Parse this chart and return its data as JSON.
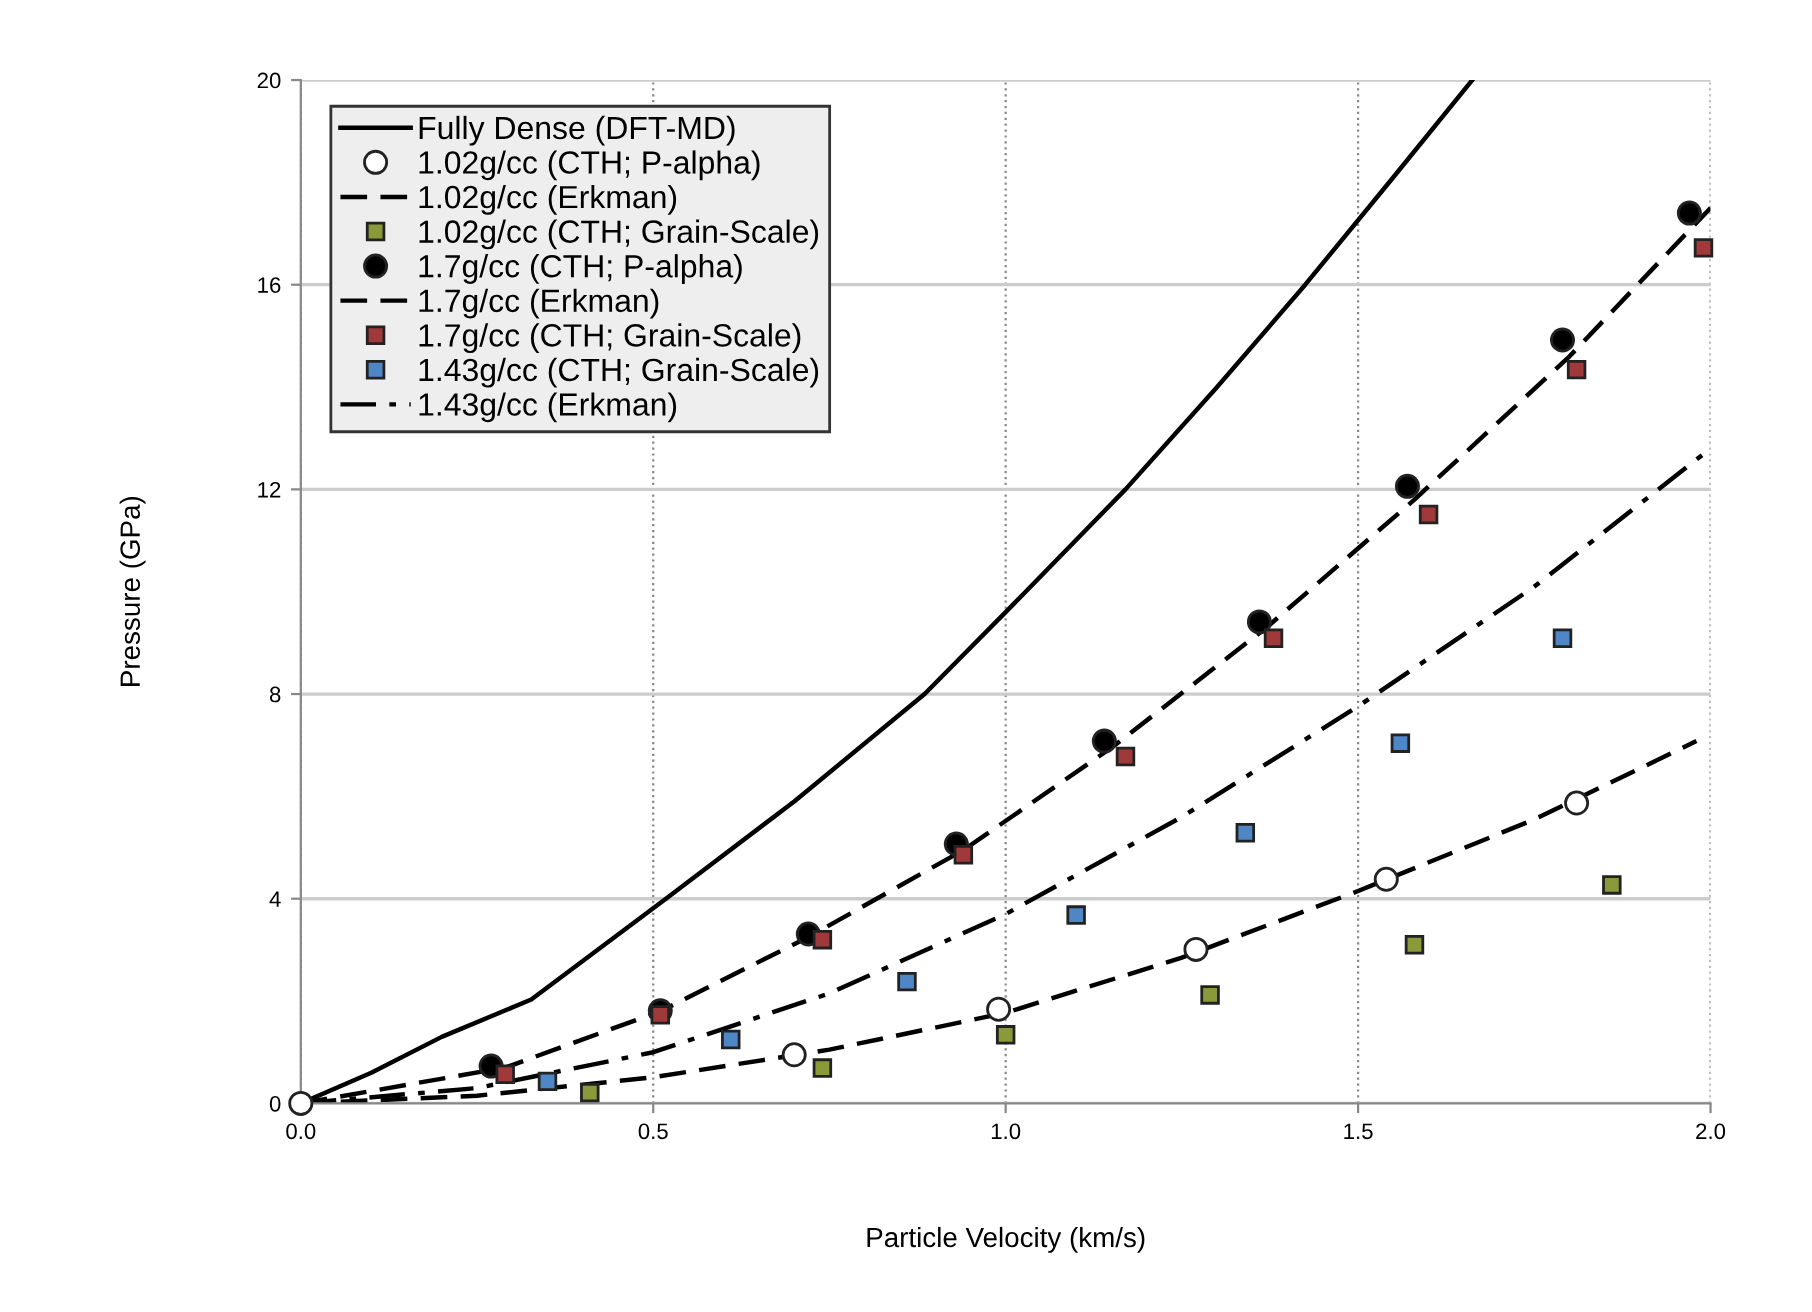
{
  "chart_data": {
    "type": "line",
    "xlabel": "Particle Velocity (km/s)",
    "ylabel": "Pressure (GPa)",
    "xlim": [
      0,
      2.0
    ],
    "ylim": [
      0,
      20
    ],
    "xticks": [
      {
        "value": 0,
        "label": "0.0"
      },
      {
        "value": 0.5,
        "label": "0.5"
      },
      {
        "value": 1.0,
        "label": "1.0"
      },
      {
        "value": 1.5,
        "label": "1.5"
      },
      {
        "value": 2.0,
        "label": "2.0"
      }
    ],
    "yticks": [
      0,
      4,
      8,
      12,
      16,
      20
    ],
    "grid": true,
    "legend": "top left",
    "series": [
      {
        "name": "Fully Dense (DFT-MD)",
        "line_style": "solid",
        "color": "#000000",
        "x": [
          0,
          0.1,
          0.2,
          0.327,
          0.518,
          0.7,
          0.885,
          1.0,
          1.17,
          1.3,
          1.425,
          1.55,
          1.662
        ],
        "values": [
          0,
          0.6,
          1.3,
          2.03,
          4,
          5.9,
          8,
          9.6,
          12,
          14,
          16,
          18.1,
          20
        ]
      },
      {
        "name": "1.02g/cc (CTH; P-alpha)",
        "type": "scatter",
        "marker": "circle",
        "color": "#ffffff",
        "x": [
          0,
          0.7,
          0.99,
          1.27,
          1.54,
          1.81
        ],
        "values": [
          0,
          0.95,
          1.84,
          3.01,
          4.38,
          5.87
        ]
      },
      {
        "name": "1.02g/cc (Erkman)",
        "line_style": "dashed",
        "color": "#000000",
        "x": [
          0,
          0.25,
          0.5,
          0.75,
          1.0,
          1.25,
          1.5,
          1.75,
          1.98
        ],
        "values": [
          0,
          0.15,
          0.51,
          1.05,
          1.77,
          2.85,
          4.15,
          5.55,
          7.08
        ]
      },
      {
        "name": "1.02g/cc (CTH; Grain-Scale)",
        "type": "scatter",
        "marker": "square",
        "color": "#8a9a3a",
        "x": [
          0.41,
          0.74,
          1.0,
          1.29,
          1.58,
          1.86
        ],
        "values": [
          0.21,
          0.69,
          1.34,
          2.12,
          3.1,
          4.27
        ]
      },
      {
        "name": "1.7g/cc (CTH; P-alpha)",
        "type": "scatter",
        "marker": "circle",
        "color": "#000000",
        "x": [
          0.27,
          0.51,
          0.72,
          0.93,
          1.14,
          1.36,
          1.57,
          1.79,
          1.97
        ],
        "values": [
          0.73,
          1.81,
          3.31,
          5.07,
          7.08,
          9.41,
          12.06,
          14.92,
          17.4
        ]
      },
      {
        "name": "1.7g/cc (Erkman)",
        "line_style": "dashed",
        "color": "#000000",
        "x": [
          0,
          0.29,
          0.51,
          0.72,
          0.94,
          1.15,
          1.37,
          1.58,
          1.8,
          2.0
        ],
        "values": [
          0,
          0.7,
          1.8,
          3.25,
          4.95,
          6.95,
          9.3,
          11.8,
          14.6,
          17.5
        ]
      },
      {
        "name": "1.7g/cc (CTH; Grain-Scale)",
        "type": "scatter",
        "marker": "square",
        "color": "#a0393a",
        "x": [
          0.29,
          0.51,
          0.74,
          0.94,
          1.17,
          1.38,
          1.6,
          1.81,
          1.99
        ],
        "values": [
          0.57,
          1.73,
          3.2,
          4.86,
          6.78,
          9.09,
          11.51,
          14.34,
          16.72
        ]
      },
      {
        "name": "1.43g/cc (CTH; Grain-Scale)",
        "type": "scatter",
        "marker": "square",
        "color": "#4f86c6",
        "x": [
          0.35,
          0.61,
          0.86,
          1.1,
          1.34,
          1.56,
          1.79
        ],
        "values": [
          0.43,
          1.25,
          2.38,
          3.68,
          5.29,
          7.04,
          9.09
        ]
      },
      {
        "name": "1.43g/cc (Erkman)",
        "line_style": "dashdot",
        "color": "#000000",
        "x": [
          0,
          0.25,
          0.5,
          0.75,
          1.0,
          1.25,
          1.5,
          1.75,
          2.0
        ],
        "values": [
          0,
          0.3,
          1.0,
          2.15,
          3.7,
          5.6,
          7.76,
          10.1,
          12.8
        ]
      }
    ]
  }
}
